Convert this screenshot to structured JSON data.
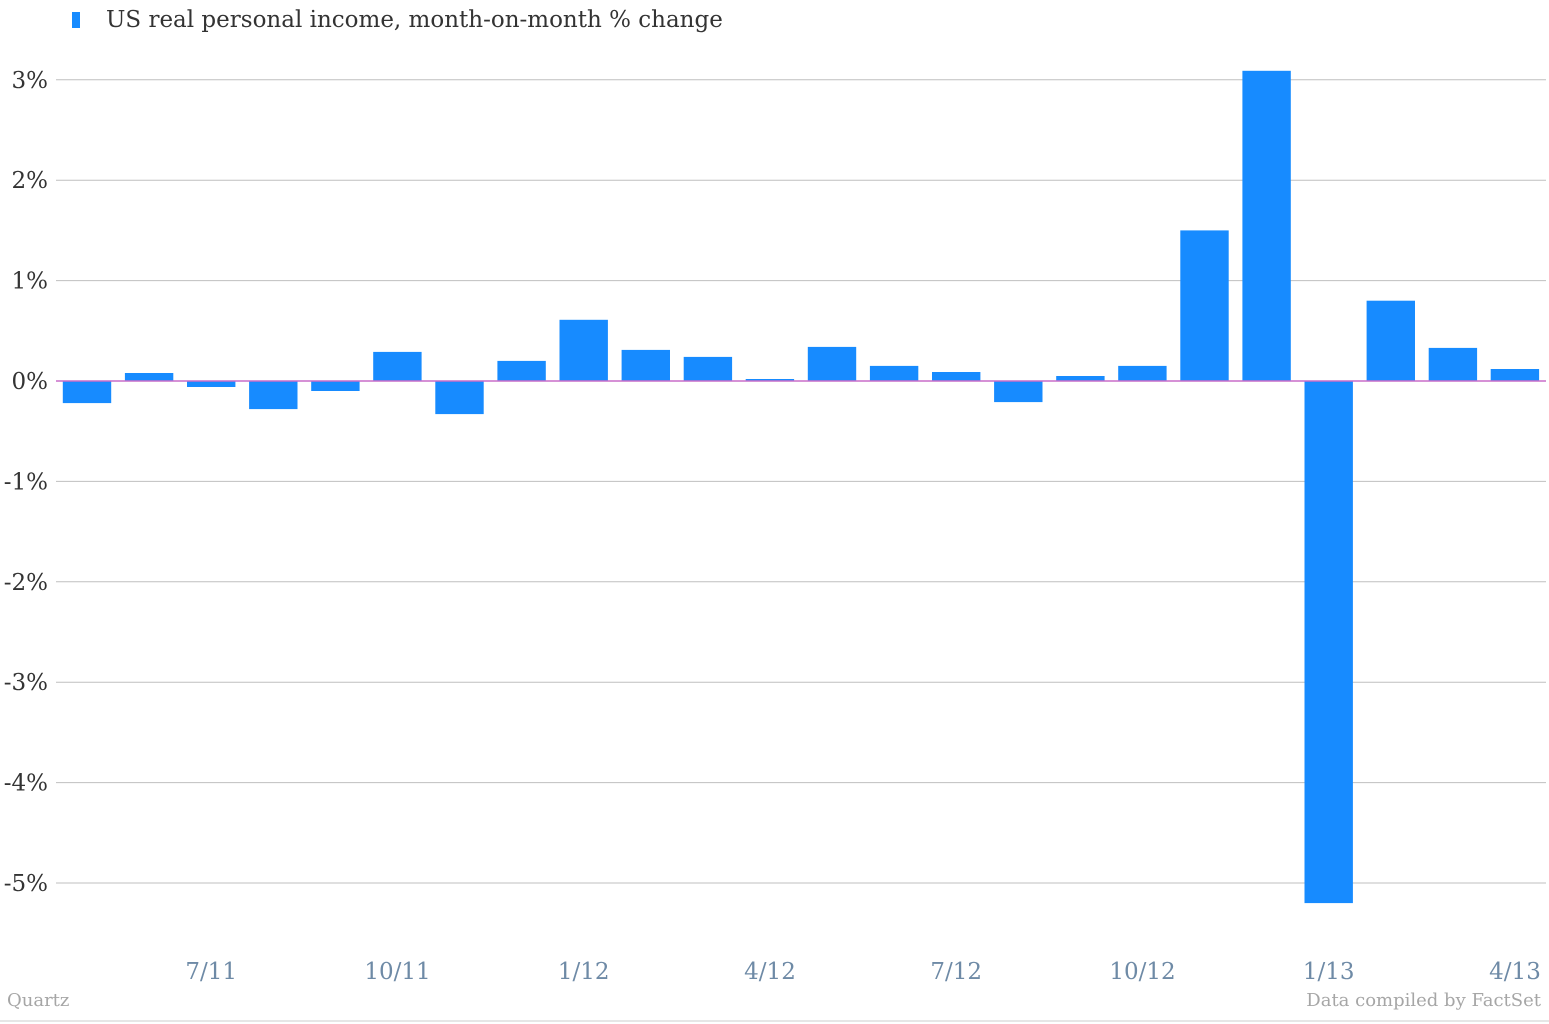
{
  "chart_data": {
    "type": "bar",
    "series": [
      {
        "name": "US real personal income, month-on-month % change",
        "values": [
          -0.22,
          0.08,
          -0.06,
          -0.28,
          -0.1,
          0.29,
          -0.33,
          0.2,
          0.61,
          0.31,
          0.24,
          0.02,
          0.34,
          0.15,
          0.09,
          -0.21,
          0.05,
          0.15,
          1.5,
          3.09,
          -5.2,
          0.8,
          0.33,
          0.12
        ]
      }
    ],
    "x_tick_labels": [
      "7/11",
      "10/11",
      "1/12",
      "4/12",
      "7/12",
      "10/12",
      "1/13",
      "4/13"
    ],
    "y_tick_labels": [
      "3%",
      "2%",
      "1%",
      "0%",
      "-1%",
      "-2%",
      "-3%",
      "-4%",
      "-5%"
    ],
    "ylim": [
      -5.5,
      3.3
    ],
    "grid": true,
    "legend_position": "top-left",
    "colors": {
      "bar": "#178bff",
      "zero_line": "#c86dc8",
      "grid": "#bfbfbf"
    }
  },
  "legend": {
    "label": "US real personal income, month-on-month % change"
  },
  "footer": {
    "source_left": "Quartz",
    "source_right": "Data compiled by FactSet"
  }
}
